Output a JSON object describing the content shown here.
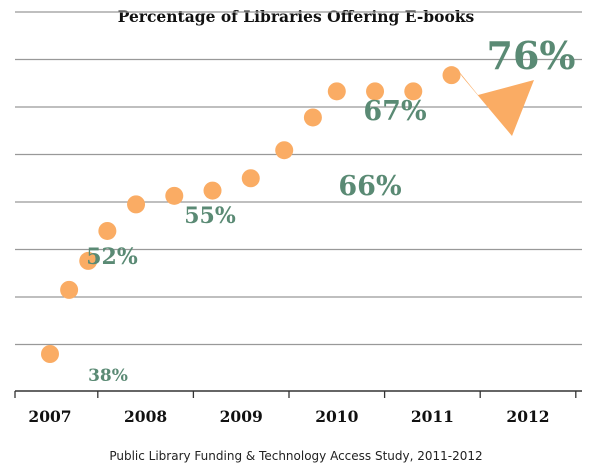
{
  "chart_data": {
    "type": "scatter",
    "title": "Percentage of Libraries Offering E-books",
    "xlabel": "",
    "ylabel": "",
    "categories": [
      "2007",
      "2008",
      "2009",
      "2010",
      "2011",
      "2012"
    ],
    "points": [
      {
        "x": 2007.0,
        "y": 38
      },
      {
        "x": 2007.2,
        "y": 51.5
      },
      {
        "x": 2007.4,
        "y": 57.6
      },
      {
        "x": 2007.6,
        "y": 63.9
      },
      {
        "x": 2007.9,
        "y": 69.5
      },
      {
        "x": 2008.3,
        "y": 71.3
      },
      {
        "x": 2008.7,
        "y": 72.4
      },
      {
        "x": 2009.1,
        "y": 75.0
      },
      {
        "x": 2009.45,
        "y": 80.9
      },
      {
        "x": 2009.75,
        "y": 87.8
      },
      {
        "x": 2010.0,
        "y": 93.3
      },
      {
        "x": 2010.4,
        "y": 93.3
      },
      {
        "x": 2010.8,
        "y": 93.3
      },
      {
        "x": 2011.2,
        "y": 96.7
      }
    ],
    "labeled_values": [
      {
        "label": "38%",
        "near_x": 2007.0,
        "value": 38
      },
      {
        "label": "52%",
        "near_x": 2007.4,
        "value": 52
      },
      {
        "label": "55%",
        "near_x": 2008.6,
        "value": 55
      },
      {
        "label": "66%",
        "near_x": 2009.9,
        "value": 66
      },
      {
        "label": "67%",
        "near_x": 2010.5,
        "value": 67
      },
      {
        "label": "76%",
        "near_x": 2012.0,
        "value": 76
      }
    ],
    "projection": {
      "from": {
        "x": 2011.2,
        "y": 96.7
      },
      "to_label": "76%"
    },
    "ylim": [
      30,
      110
    ],
    "xlim": [
      2006.5,
      2012.5
    ],
    "grid": true,
    "legend": "none",
    "colors": {
      "marker": "#FAAC64",
      "label": "#5A8A74",
      "grid": "#999999",
      "axis": "#333333"
    },
    "source": "Public Library Funding & Technology Access Study, 2011-2012"
  }
}
